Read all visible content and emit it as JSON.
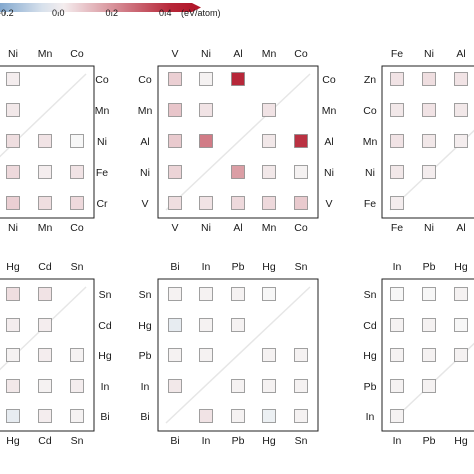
{
  "chart_data": {
    "type": "heatmap",
    "colorbar": {
      "ticks": [
        "−0.2",
        "0.0",
        "0.2",
        "0.4"
      ],
      "tick_values": [
        -0.2,
        0.0,
        0.2,
        0.4
      ],
      "range": [
        -0.3,
        0.5
      ],
      "unit": "(eV/atom)",
      "low_color": "#2166ac",
      "mid_color": "#f7f7f7",
      "high_color": "#b2182b"
    },
    "panels": [
      {
        "id": "p1",
        "cols": [
          "Ni",
          "Mn",
          "Co"
        ],
        "rows": [
          "Co",
          "Mn",
          "Ni",
          "Fe",
          "Cr"
        ],
        "cells": [
          [
            0,
            0,
            0.02
          ],
          [
            0,
            1,
            0.03
          ],
          [
            0,
            2,
            0.05
          ],
          [
            1,
            2,
            0.04
          ],
          [
            0,
            3,
            0.06
          ],
          [
            1,
            3,
            0.02
          ],
          [
            0,
            4,
            0.08
          ],
          [
            1,
            4,
            0.05
          ],
          [
            2,
            4,
            0.06
          ],
          [
            2,
            2,
            0.0
          ],
          [
            2,
            3,
            0.04
          ]
        ]
      },
      {
        "id": "p2",
        "cols": [
          "V",
          "Ni",
          "Al",
          "Mn",
          "Co"
        ],
        "rows": [
          "Co",
          "Mn",
          "Al",
          "Ni",
          "V"
        ],
        "cells": [
          [
            0,
            0,
            0.08
          ],
          [
            1,
            0,
            0.01
          ],
          [
            2,
            0,
            0.42
          ],
          [
            0,
            1,
            0.1
          ],
          [
            1,
            1,
            0.04
          ],
          [
            3,
            1,
            0.04
          ],
          [
            0,
            2,
            0.09
          ],
          [
            1,
            2,
            0.25
          ],
          [
            3,
            2,
            0.03
          ],
          [
            4,
            2,
            0.4
          ],
          [
            0,
            3,
            0.07
          ],
          [
            2,
            3,
            0.18
          ],
          [
            3,
            3,
            0.03
          ],
          [
            4,
            3,
            0.01
          ],
          [
            0,
            4,
            0.05
          ],
          [
            1,
            4,
            0.04
          ],
          [
            2,
            4,
            0.06
          ],
          [
            3,
            4,
            0.06
          ],
          [
            4,
            4,
            0.09
          ]
        ]
      },
      {
        "id": "p3",
        "cols": [
          "Fe",
          "Ni",
          "Al"
        ],
        "rows": [
          "Zn",
          "Co",
          "Mn",
          "Ni",
          "Fe"
        ],
        "cells": [
          [
            0,
            0,
            0.04
          ],
          [
            1,
            0,
            0.05
          ],
          [
            2,
            0,
            0.04
          ],
          [
            0,
            1,
            0.03
          ],
          [
            1,
            1,
            0.04
          ],
          [
            2,
            1,
            0.03
          ],
          [
            0,
            2,
            0.04
          ],
          [
            1,
            2,
            0.03
          ],
          [
            2,
            2,
            0.02
          ],
          [
            0,
            3,
            0.03
          ],
          [
            1,
            3,
            0.02
          ],
          [
            0,
            4,
            0.02
          ]
        ]
      },
      {
        "id": "p4",
        "cols": [
          "Hg",
          "Cd",
          "Sn"
        ],
        "rows": [
          "Sn",
          "Cd",
          "Hg",
          "In",
          "Bi"
        ],
        "cells": [
          [
            0,
            0,
            0.05
          ],
          [
            1,
            0,
            0.04
          ],
          [
            0,
            1,
            0.02
          ],
          [
            1,
            1,
            0.02
          ],
          [
            0,
            2,
            0.01
          ],
          [
            1,
            2,
            0.02
          ],
          [
            2,
            2,
            0.01
          ],
          [
            0,
            3,
            0.03
          ],
          [
            1,
            3,
            0.01
          ],
          [
            2,
            3,
            0.02
          ],
          [
            0,
            4,
            -0.03
          ],
          [
            1,
            4,
            0.02
          ],
          [
            2,
            4,
            0.01
          ]
        ]
      },
      {
        "id": "p5",
        "cols": [
          "Bi",
          "In",
          "Pb",
          "Hg",
          "Sn"
        ],
        "rows": [
          "Sn",
          "Hg",
          "Pb",
          "In",
          "Bi"
        ],
        "cells": [
          [
            0,
            0,
            0.01
          ],
          [
            1,
            0,
            0.01
          ],
          [
            2,
            0,
            0.01
          ],
          [
            3,
            0,
            0.0
          ],
          [
            0,
            1,
            -0.03
          ],
          [
            1,
            1,
            0.01
          ],
          [
            2,
            1,
            0.01
          ],
          [
            0,
            2,
            0.01
          ],
          [
            1,
            2,
            0.01
          ],
          [
            3,
            2,
            0.01
          ],
          [
            4,
            2,
            0.01
          ],
          [
            0,
            3,
            0.03
          ],
          [
            2,
            3,
            0.01
          ],
          [
            3,
            3,
            0.01
          ],
          [
            4,
            3,
            0.01
          ],
          [
            1,
            4,
            0.04
          ],
          [
            2,
            4,
            0.01
          ],
          [
            3,
            4,
            -0.02
          ],
          [
            4,
            4,
            0.01
          ]
        ]
      },
      {
        "id": "p6",
        "cols": [
          "In",
          "Pb",
          "Hg"
        ],
        "rows": [
          "Sn",
          "Cd",
          "Hg",
          "Pb",
          "In"
        ],
        "cells": [
          [
            0,
            0,
            0.0
          ],
          [
            1,
            0,
            0.0
          ],
          [
            2,
            0,
            0.01
          ],
          [
            0,
            1,
            0.01
          ],
          [
            1,
            1,
            0.01
          ],
          [
            2,
            1,
            0.0
          ],
          [
            0,
            2,
            0.01
          ],
          [
            1,
            2,
            0.01
          ],
          [
            2,
            2,
            0.01
          ],
          [
            0,
            3,
            0.01
          ],
          [
            1,
            3,
            0.01
          ],
          [
            0,
            4,
            0.01
          ]
        ]
      }
    ]
  }
}
